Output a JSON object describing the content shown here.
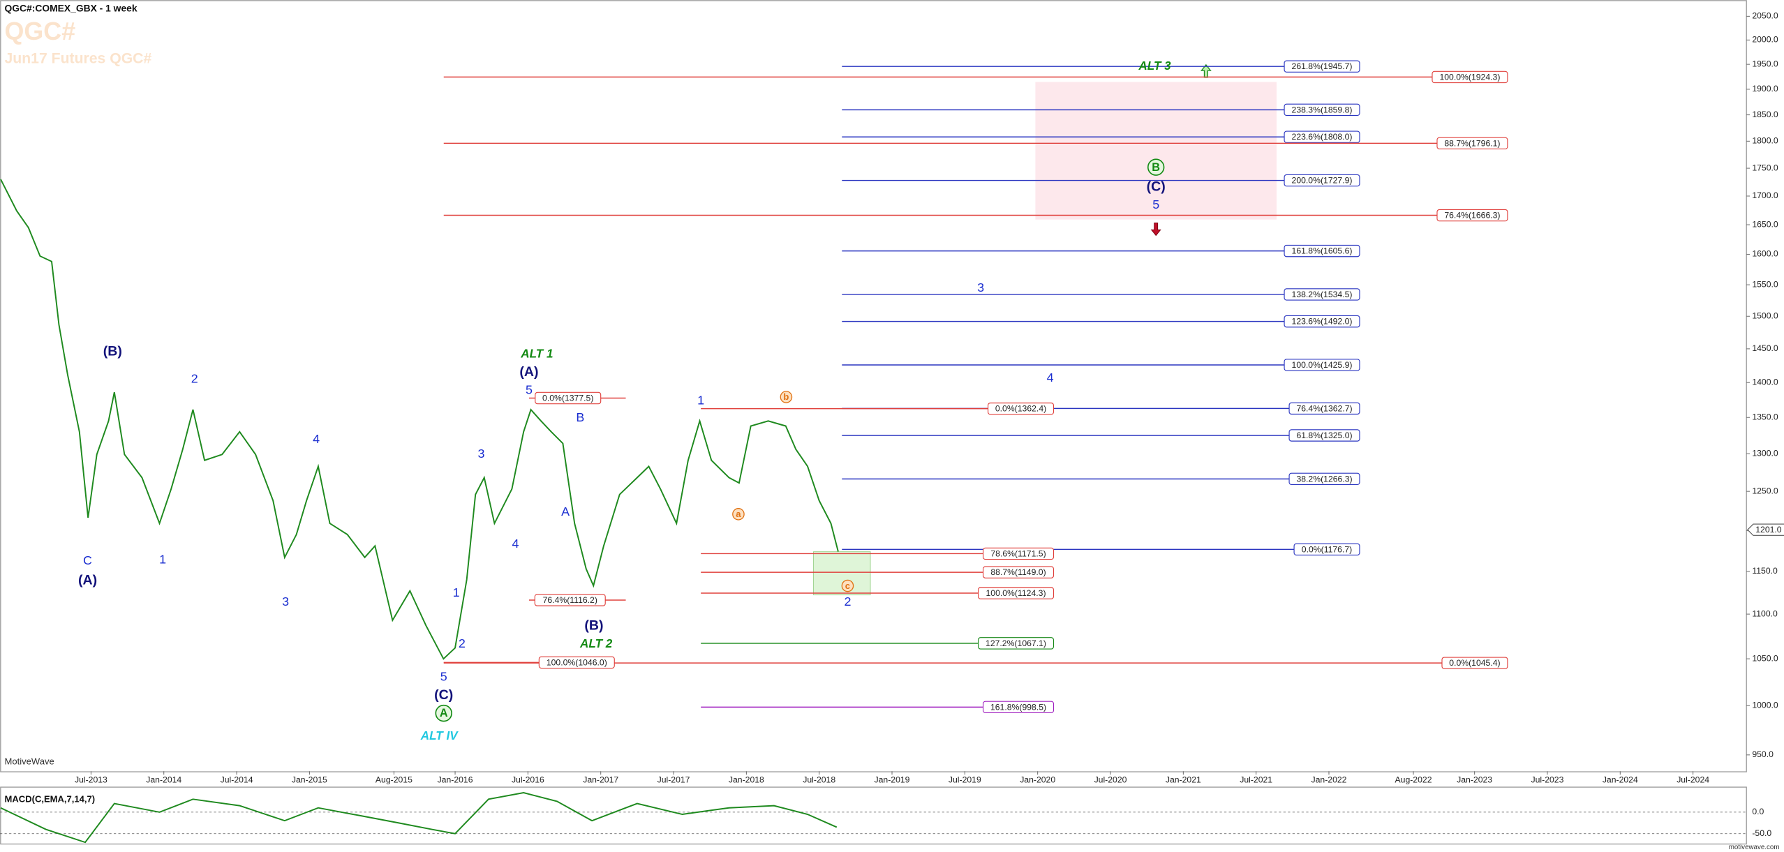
{
  "header": {
    "symbol": "QGC#:COMEX_GBX - 1 week",
    "ticker": "QGC#",
    "contract": "Jun17 Futures QGC#",
    "brand": "MotiveWave",
    "watermark": "motivewave.com"
  },
  "chart_data": [
    {
      "type": "line",
      "log_scale": true,
      "color": "#1f8a1f",
      "x": [
        2012.88,
        2012.99,
        2013.07,
        2013.15,
        2013.23,
        2013.28,
        2013.34,
        2013.42,
        2013.48,
        2013.54,
        2013.62,
        2013.66,
        2013.73,
        2013.85,
        2013.97,
        2014.05,
        2014.13,
        2014.2,
        2014.28,
        2014.4,
        2014.52,
        2014.63,
        2014.75,
        2014.83,
        2014.91,
        2014.98,
        2015.06,
        2015.14,
        2015.26,
        2015.38,
        2015.45,
        2015.57,
        2015.69,
        2015.8,
        2015.92,
        2016.0,
        2016.08,
        2016.14,
        2016.2,
        2016.27,
        2016.39,
        2016.47,
        2016.52,
        2016.59,
        2016.66,
        2016.74,
        2016.82,
        2016.9,
        2016.95,
        2017.02,
        2017.13,
        2017.25,
        2017.33,
        2017.41,
        2017.52,
        2017.6,
        2017.68,
        2017.76,
        2017.88,
        2017.95,
        2018.03,
        2018.15,
        2018.27,
        2018.34,
        2018.42,
        2018.5,
        2018.58,
        2018.63
      ],
      "values": [
        1730,
        1674,
        1645,
        1597,
        1588,
        1487,
        1411,
        1330,
        1216,
        1299,
        1345,
        1386,
        1299,
        1268,
        1209,
        1253,
        1306,
        1361,
        1291,
        1299,
        1330,
        1299,
        1238,
        1167,
        1195,
        1238,
        1283,
        1209,
        1195,
        1167,
        1181,
        1093,
        1127,
        1087,
        1050,
        1062,
        1140,
        1246,
        1268,
        1209,
        1253,
        1330,
        1361,
        1345,
        1330,
        1314,
        1209,
        1153,
        1133,
        1181,
        1246,
        1268,
        1283,
        1253,
        1209,
        1291,
        1345,
        1291,
        1268,
        1261,
        1338,
        1345,
        1338,
        1306,
        1283,
        1238,
        1209,
        1174
      ],
      "xlim": [
        2012.875,
        2024.867
      ],
      "ylim": [
        934,
        2085
      ],
      "xticks": [
        {
          "value": 2013.5,
          "label": "Jul-2013"
        },
        {
          "value": 2014.0,
          "label": "Jan-2014"
        },
        {
          "value": 2014.5,
          "label": "Jul-2014"
        },
        {
          "value": 2015.0,
          "label": "Jan-2015"
        },
        {
          "value": 2015.58,
          "label": "Aug-2015"
        },
        {
          "value": 2016.0,
          "label": "Jan-2016"
        },
        {
          "value": 2016.5,
          "label": "Jul-2016"
        },
        {
          "value": 2017.0,
          "label": "Jan-2017"
        },
        {
          "value": 2017.5,
          "label": "Jul-2017"
        },
        {
          "value": 2018.0,
          "label": "Jan-2018"
        },
        {
          "value": 2018.5,
          "label": "Jul-2018"
        },
        {
          "value": 2019.0,
          "label": "Jan-2019"
        },
        {
          "value": 2019.5,
          "label": "Jul-2019"
        },
        {
          "value": 2020.0,
          "label": "Jan-2020"
        },
        {
          "value": 2020.5,
          "label": "Jul-2020"
        },
        {
          "value": 2021.0,
          "label": "Jan-2021"
        },
        {
          "value": 2021.5,
          "label": "Jul-2021"
        },
        {
          "value": 2022.0,
          "label": "Jan-2022"
        },
        {
          "value": 2022.58,
          "label": "Aug-2022"
        },
        {
          "value": 2023.0,
          "label": "Jan-2023"
        },
        {
          "value": 2023.5,
          "label": "Jul-2023"
        },
        {
          "value": 2024.0,
          "label": "Jan-2024"
        },
        {
          "value": 2024.5,
          "label": "Jul-2024"
        }
      ],
      "yticks": [
        {
          "value": 950,
          "label": "950.0"
        },
        {
          "value": 1000,
          "label": "1000.0"
        },
        {
          "value": 1050,
          "label": "1050.0"
        },
        {
          "value": 1100,
          "label": "1100.0"
        },
        {
          "value": 1150,
          "label": "1150.0"
        },
        {
          "value": 1200,
          "label": "1200.0"
        },
        {
          "value": 1250,
          "label": "1250.0"
        },
        {
          "value": 1300,
          "label": "1300.0"
        },
        {
          "value": 1350,
          "label": "1350.0"
        },
        {
          "value": 1400,
          "label": "1400.0"
        },
        {
          "value": 1450,
          "label": "1450.0"
        },
        {
          "value": 1500,
          "label": "1500.0"
        },
        {
          "value": 1550,
          "label": "1550.0"
        },
        {
          "value": 1600,
          "label": "1600.0"
        },
        {
          "value": 1650,
          "label": "1650.0"
        },
        {
          "value": 1700,
          "label": "1700.0"
        },
        {
          "value": 1750,
          "label": "1750.0"
        },
        {
          "value": 1800,
          "label": "1800.0"
        },
        {
          "value": 1850,
          "label": "1850.0"
        },
        {
          "value": 1900,
          "label": "1900.0"
        },
        {
          "value": 1950,
          "label": "1950.0"
        },
        {
          "value": 2000,
          "label": "2000.0"
        },
        {
          "value": 2050,
          "label": "2050.0"
        }
      ],
      "last_price": {
        "value": 1201,
        "label": "1201.0"
      },
      "levels": [
        {
          "label": "261.8%(1945.7)",
          "price": 1945.7,
          "color": "#2a35c0"
        },
        {
          "label": "238.3%(1859.8)",
          "price": 1859.8,
          "color": "#2a35c0"
        },
        {
          "label": "223.6%(1808.0)",
          "price": 1808,
          "color": "#2a35c0"
        },
        {
          "label": "200.0%(1727.9)",
          "price": 1727.9,
          "color": "#2a35c0"
        },
        {
          "label": "161.8%(1605.6)",
          "price": 1605.6,
          "color": "#2a35c0"
        },
        {
          "label": "138.2%(1534.5)",
          "price": 1534.5,
          "color": "#2a35c0"
        },
        {
          "label": "123.6%(1492.0)",
          "price": 1492,
          "color": "#2a35c0"
        },
        {
          "label": "100.0%(1425.9)",
          "price": 1425.9,
          "color": "#2a35c0"
        },
        {
          "label": "76.4%(1362.7)",
          "price": 1362.7,
          "color": "#2a35c0"
        },
        {
          "label": "61.8%(1325.0)",
          "price": 1325,
          "color": "#2a35c0"
        },
        {
          "label": "38.2%(1266.3)",
          "price": 1266.3,
          "color": "#2a35c0"
        },
        {
          "label": "0.0%(1176.7)",
          "price": 1176.7,
          "color": "#2a35c0"
        },
        {
          "label": "100.0%(1924.3)",
          "price": 1924.3,
          "color": "#e0403c"
        },
        {
          "label": "88.7%(1796.1)",
          "price": 1796.1,
          "color": "#e0403c"
        },
        {
          "label": "76.4%(1666.3)",
          "price": 1666.3,
          "color": "#e0403c"
        },
        {
          "label": "0.0%(1045.4)",
          "price": 1045.4,
          "color": "#e0403c"
        },
        {
          "label": "100.0%(1046.0)",
          "price": 1046,
          "color": "#e0403c"
        },
        {
          "label": "0.0%(1377.5)",
          "price": 1377.5,
          "color": "#e0403c"
        },
        {
          "label": "76.4%(1116.2)",
          "price": 1116.2,
          "color": "#e0403c"
        },
        {
          "label": "0.0%(1362.4)",
          "price": 1362.4,
          "color": "#e0403c"
        },
        {
          "label": "78.6%(1171.5)",
          "price": 1171.5,
          "color": "#e0403c"
        },
        {
          "label": "88.7%(1149.0)",
          "price": 1149,
          "color": "#e0403c"
        },
        {
          "label": "100.0%(1124.3)",
          "price": 1124.3,
          "color": "#e0403c"
        },
        {
          "label": "127.2%(1067.1)",
          "price": 1067.1,
          "color": "#1a8a1a"
        },
        {
          "label": "161.8%(998.5)",
          "price": 998.5,
          "color": "#a020c0"
        }
      ],
      "wave_labels": [
        {
          "text": "C",
          "style": "blue"
        },
        {
          "text": "(A)",
          "style": "navy"
        },
        {
          "text": "(B)",
          "style": "navy"
        },
        {
          "text": "2",
          "style": "blue"
        },
        {
          "text": "1",
          "style": "blue"
        },
        {
          "text": "4",
          "style": "blue"
        },
        {
          "text": "3",
          "style": "blue"
        },
        {
          "text": "1",
          "style": "blue"
        },
        {
          "text": "2",
          "style": "blue"
        },
        {
          "text": "5",
          "style": "blue"
        },
        {
          "text": "(C)",
          "style": "navy"
        },
        {
          "text": "A",
          "style": "circle-green"
        },
        {
          "text": "ALT IV",
          "style": "alt-cyan"
        },
        {
          "text": "ALT 1",
          "style": "alt"
        },
        {
          "text": "(A)",
          "style": "navy"
        },
        {
          "text": "5",
          "style": "blue"
        },
        {
          "text": "3",
          "style": "blue"
        },
        {
          "text": "4",
          "style": "blue"
        },
        {
          "text": "B",
          "style": "blue"
        },
        {
          "text": "A",
          "style": "blue"
        },
        {
          "text": "(B)",
          "style": "navy"
        },
        {
          "text": "ALT 2",
          "style": "alt"
        },
        {
          "text": "1",
          "style": "blue"
        },
        {
          "text": "b",
          "style": "circle-orange"
        },
        {
          "text": "a",
          "style": "circle-orange"
        },
        {
          "text": "c",
          "style": "circle-orange"
        },
        {
          "text": "2",
          "style": "blue"
        },
        {
          "text": "3",
          "style": "blue"
        },
        {
          "text": "4",
          "style": "blue"
        },
        {
          "text": "ALT 3",
          "style": "alt"
        },
        {
          "text": "B",
          "style": "circle-green"
        },
        {
          "text": "(C)",
          "style": "navy"
        },
        {
          "text": "5",
          "style": "blue"
        }
      ]
    },
    {
      "type": "line",
      "title": "MACD(C,EMA,7,14,7)",
      "color": "#1f8a1f",
      "x": [
        2012.88,
        2013.19,
        2013.46,
        2013.66,
        2013.97,
        2014.2,
        2014.52,
        2014.83,
        2015.06,
        2015.38,
        2015.61,
        2015.84,
        2016.0,
        2016.23,
        2016.47,
        2016.7,
        2016.94,
        2017.25,
        2017.56,
        2017.88,
        2018.19,
        2018.42,
        2018.62
      ],
      "values": [
        10,
        -40,
        -70,
        20,
        0,
        30,
        15,
        -20,
        10,
        -10,
        -25,
        -40,
        -50,
        30,
        45,
        25,
        -20,
        20,
        -5,
        10,
        15,
        -5,
        -35
      ],
      "ylim": [
        -74,
        58
      ],
      "yticks": [
        {
          "value": 0,
          "label": "0.0"
        },
        {
          "value": -50,
          "label": "-50.0"
        }
      ]
    }
  ]
}
